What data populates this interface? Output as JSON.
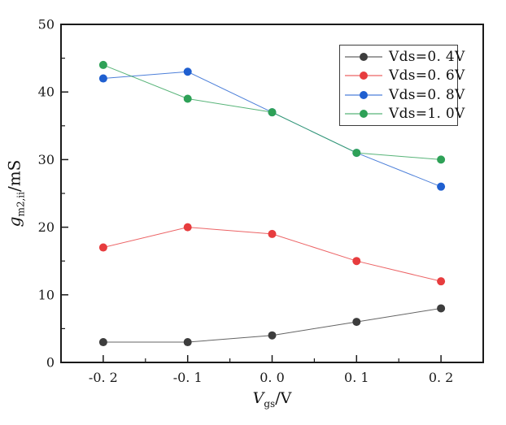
{
  "axes": {
    "xlabel": {
      "base": "V",
      "sub": "gs",
      "unit": "/V"
    },
    "ylabel": {
      "base": "g",
      "sub": "m2,ii",
      "unit": "/mS"
    }
  },
  "chart_data": {
    "type": "line",
    "title": "",
    "x": [
      -0.2,
      -0.1,
      0.0,
      0.1,
      0.2
    ],
    "xlim": [
      -0.25,
      0.25
    ],
    "ylim": [
      0,
      50
    ],
    "xticks": [
      -0.2,
      -0.1,
      0.0,
      0.1,
      0.2
    ],
    "xtick_labels": [
      "-0. 2",
      "-0. 1",
      "0. 0",
      "0. 1",
      "0. 2"
    ],
    "xminorticks": [
      -0.15,
      -0.05,
      0.05,
      0.15
    ],
    "yticks": [
      0,
      10,
      20,
      30,
      40,
      50
    ],
    "ytick_labels": [
      "0",
      "10",
      "20",
      "30",
      "40",
      "50"
    ],
    "yminorticks": [
      5,
      15,
      25,
      35,
      45
    ],
    "xlabel": "Vgs/V",
    "ylabel": "gm2,ii/mS",
    "grid": false,
    "legend_position": "upper right",
    "marker": "circle",
    "series": [
      {
        "name": "Vds=0.4V",
        "label": "Vds=0. 4V",
        "color": "#3d3d3d",
        "values": [
          3,
          3,
          4,
          6,
          8
        ]
      },
      {
        "name": "Vds=0.6V",
        "label": "Vds=0. 6V",
        "color": "#e73c3e",
        "values": [
          17,
          20,
          19,
          15,
          12
        ]
      },
      {
        "name": "Vds=0.8V",
        "label": "Vds=0. 8V",
        "color": "#1f5fd0",
        "values": [
          42,
          43,
          37,
          31,
          26
        ]
      },
      {
        "name": "Vds=1.0V",
        "label": "Vds=1. 0V",
        "color": "#2ea157",
        "values": [
          44,
          39,
          37,
          31,
          30
        ]
      }
    ]
  }
}
